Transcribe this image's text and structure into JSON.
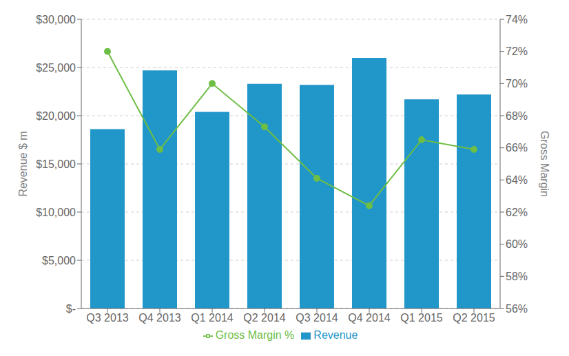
{
  "chart_data": {
    "type": "bar",
    "categories": [
      "Q3 2013",
      "Q4 2013",
      "Q1 2014",
      "Q2 2014",
      "Q3 2014",
      "Q4 2014",
      "Q1 2015",
      "Q2 2015"
    ],
    "series": [
      {
        "name": "Revenue",
        "type": "bar",
        "color": "#2196C8",
        "values": [
          18600,
          24700,
          20400,
          23300,
          23200,
          26000,
          21700,
          22200
        ]
      },
      {
        "name": "Gross Margin %",
        "type": "line",
        "color": "#6DBE45",
        "marker": "circle",
        "axis": "y2",
        "values": [
          72.0,
          65.9,
          70.0,
          67.3,
          64.1,
          62.4,
          66.5,
          65.9
        ]
      }
    ],
    "ylabel": "Revenue $ m",
    "y2label": "Gross Margin",
    "ylim": [
      0,
      30000
    ],
    "yticks": [
      {
        "value": 0,
        "label": "$-"
      },
      {
        "value": 5000,
        "label": "$5,000"
      },
      {
        "value": 10000,
        "label": "$10,000"
      },
      {
        "value": 15000,
        "label": "$15,000"
      },
      {
        "value": 20000,
        "label": "$20,000"
      },
      {
        "value": 25000,
        "label": "$25,000"
      },
      {
        "value": 30000,
        "label": "$30,000"
      }
    ],
    "y2lim": [
      56,
      74
    ],
    "y2ticks": [
      {
        "value": 56,
        "label": "56%"
      },
      {
        "value": 58,
        "label": "58%"
      },
      {
        "value": 60,
        "label": "60%"
      },
      {
        "value": 62,
        "label": "62%"
      },
      {
        "value": 64,
        "label": "64%"
      },
      {
        "value": 66,
        "label": "66%"
      },
      {
        "value": 68,
        "label": "68%"
      },
      {
        "value": 70,
        "label": "70%"
      },
      {
        "value": 72,
        "label": "72%"
      },
      {
        "value": 74,
        "label": "74%"
      }
    ],
    "grid": true,
    "legend": "bottom"
  }
}
